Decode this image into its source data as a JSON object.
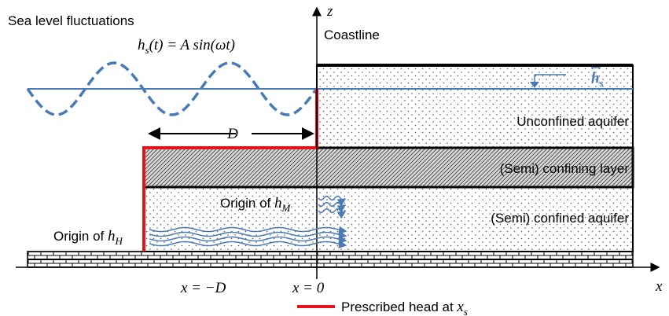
{
  "header": {
    "title": "Sea level fluctuations"
  },
  "equation": {
    "var": "h",
    "sub": "s",
    "rest": "(t) = A sin(ωt)"
  },
  "axes": {
    "z": "z",
    "x": "x",
    "coastline": "Coastline"
  },
  "mean_level": {
    "var": "h",
    "sub": "s"
  },
  "layers": {
    "unconfined": "Unconfined aquifer",
    "confining": "(Semi) confining layer",
    "confined": "(Semi) confined aquifer"
  },
  "distance": "D",
  "origins": [
    {
      "text": "Origin of ",
      "var": "h",
      "sub": "M"
    },
    {
      "text": "Origin of ",
      "var": "h",
      "sub": "H"
    }
  ],
  "positions": [
    "x = −D",
    "x = 0"
  ],
  "legend": {
    "text": "Prescribed head at ",
    "var": "x",
    "sub": "s"
  }
}
